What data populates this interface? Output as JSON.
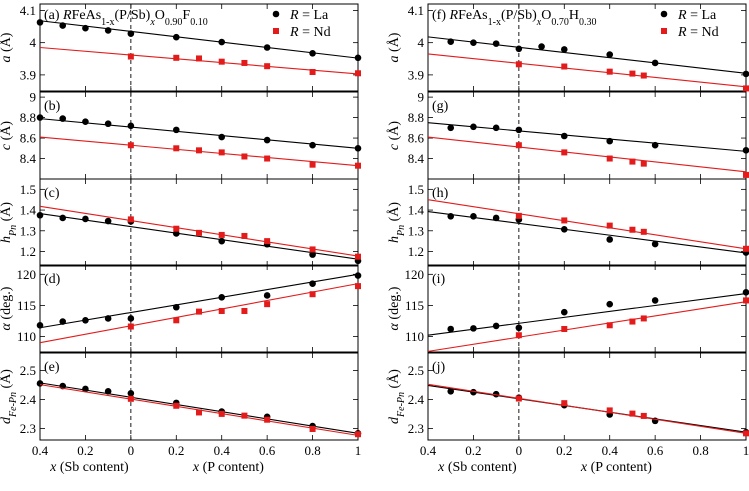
{
  "chart_data": {
    "type": "scatter",
    "x_tick_labels": [
      "0.4",
      "0.2",
      "0",
      "0.2",
      "0.4",
      "0.6",
      "0.8",
      "1"
    ],
    "x_label_sb": "x (Sb content)",
    "x_label_p": "x (P content)",
    "series_names": [
      "R = La",
      "R = Nd"
    ],
    "series_colors": [
      "#000000",
      "#e31b1b"
    ],
    "columns": [
      {
        "title": "(a) RFeAs1-x(P/Sb)xO0.90F0.10",
        "title_parts": {
          "pre": "(a) ",
          "r": "R",
          "mid": "FeAs",
          "sub1": "1-x",
          "mid2": "(P/Sb)",
          "subx": "x",
          "o": "O",
          "sub2": "0.90",
          "f": "F",
          "sub3": "0.10"
        },
        "panels": [
          {
            "label": "(a)",
            "quantity": "a",
            "unit": "(Å)",
            "ylim": [
              3.85,
              4.12
            ],
            "yticks": [
              3.9,
              4.0,
              4.1
            ],
            "series": [
              {
                "name": "R = La",
                "x": [
                  -0.4,
                  -0.3,
                  -0.2,
                  -0.1,
                  0,
                  0.2,
                  0.4,
                  0.6,
                  0.8,
                  1.0
                ],
                "y": [
                  4.063,
                  4.053,
                  4.045,
                  4.038,
                  4.028,
                  4.017,
                  4.002,
                  3.985,
                  3.967,
                  3.953
                ],
                "fit": [
                  4.068,
                  3.952
                ]
              },
              {
                "name": "R = Nd",
                "x": [
                  0,
                  0.2,
                  0.3,
                  0.4,
                  0.5,
                  0.6,
                  0.8,
                  1.0
                ],
                "y": [
                  3.957,
                  3.953,
                  3.951,
                  3.941,
                  3.937,
                  3.927,
                  3.909,
                  3.905
                ],
                "fit": [
                  3.985,
                  3.903
                ]
              }
            ]
          },
          {
            "label": "(b)",
            "quantity": "c",
            "unit": "(Å)",
            "ylim": [
              8.2,
              9.05
            ],
            "yticks": [
              8.4,
              8.6,
              8.8,
              9.0
            ],
            "series": [
              {
                "name": "R = La",
                "x": [
                  -0.4,
                  -0.3,
                  -0.2,
                  -0.1,
                  0,
                  0.2,
                  0.4,
                  0.6,
                  0.8,
                  1.0
                ],
                "y": [
                  8.8,
                  8.79,
                  8.76,
                  8.74,
                  8.72,
                  8.68,
                  8.61,
                  8.58,
                  8.53,
                  8.5
                ],
                "fit": [
                  8.79,
                  8.5
                ]
              },
              {
                "name": "R = Nd",
                "x": [
                  0,
                  0.2,
                  0.3,
                  0.4,
                  0.5,
                  0.6,
                  0.8,
                  1.0
                ],
                "y": [
                  8.53,
                  8.5,
                  8.48,
                  8.46,
                  8.42,
                  8.4,
                  8.34,
                  8.33
                ],
                "fit": [
                  8.61,
                  8.33
                ]
              }
            ]
          },
          {
            "label": "(c)",
            "quantity": "h",
            "quantity_sub": "Pn",
            "unit": "(Å)",
            "ylim": [
              1.13,
              1.55
            ],
            "yticks": [
              1.2,
              1.3,
              1.4,
              1.5
            ],
            "series": [
              {
                "name": "R = La",
                "x": [
                  -0.4,
                  -0.3,
                  -0.2,
                  -0.1,
                  0,
                  0.2,
                  0.4,
                  0.6,
                  0.8,
                  1.0
                ],
                "y": [
                  1.375,
                  1.362,
                  1.357,
                  1.347,
                  1.345,
                  1.287,
                  1.25,
                  1.235,
                  1.185,
                  1.155
                ],
                "fit": [
                  1.383,
                  1.163
                ]
              },
              {
                "name": "R = Nd",
                "x": [
                  0,
                  0.2,
                  0.3,
                  0.4,
                  0.5,
                  0.6,
                  0.8,
                  1.0
                ],
                "y": [
                  1.355,
                  1.31,
                  1.29,
                  1.28,
                  1.275,
                  1.25,
                  1.21,
                  1.175
                ],
                "fit": [
                  1.418,
                  1.178
                ]
              }
            ]
          },
          {
            "label": "(d)",
            "quantity": "α",
            "unit": "(deg.)",
            "ylim": [
              107.5,
              121.5
            ],
            "yticks": [
              110,
              115,
              120
            ],
            "series": [
              {
                "name": "R = La",
                "x": [
                  -0.4,
                  -0.3,
                  -0.2,
                  -0.1,
                  0,
                  0.2,
                  0.4,
                  0.6,
                  0.8,
                  1.0
                ],
                "y": [
                  111.8,
                  112.4,
                  112.6,
                  112.9,
                  112.9,
                  114.7,
                  116.3,
                  116.6,
                  118.5,
                  119.8
                ],
                "fit": [
                  111.4,
                  120.0
                ]
              },
              {
                "name": "R = Nd",
                "x": [
                  0,
                  0.2,
                  0.3,
                  0.4,
                  0.5,
                  0.6,
                  0.8,
                  1.0
                ],
                "y": [
                  111.6,
                  112.6,
                  114.0,
                  114.1,
                  114.1,
                  115.2,
                  116.8,
                  118.1
                ],
                "fit": [
                  109.0,
                  118.5
                ]
              }
            ]
          },
          {
            "label": "(e)",
            "quantity": "d",
            "quantity_sub": "Fe-Pn",
            "unit": "(Å)",
            "ylim": [
              2.26,
              2.56
            ],
            "yticks": [
              2.3,
              2.4,
              2.5
            ],
            "series": [
              {
                "name": "R = La",
                "x": [
                  -0.4,
                  -0.3,
                  -0.2,
                  -0.1,
                  0,
                  0.2,
                  0.4,
                  0.6,
                  0.8,
                  1.0
                ],
                "y": [
                  2.455,
                  2.446,
                  2.436,
                  2.428,
                  2.421,
                  2.388,
                  2.358,
                  2.34,
                  2.308,
                  2.283
                ],
                "fit": [
                  2.457,
                  2.283
                ]
              },
              {
                "name": "R = Nd",
                "x": [
                  0,
                  0.2,
                  0.3,
                  0.4,
                  0.5,
                  0.6,
                  0.8,
                  1.0
                ],
                "y": [
                  2.402,
                  2.378,
                  2.355,
                  2.35,
                  2.344,
                  2.33,
                  2.298,
                  2.28
                ],
                "fit": [
                  2.451,
                  2.276
                ]
              }
            ]
          }
        ]
      },
      {
        "title": "(f) RFeAs1-x(P/Sb)xO0.70H0.30",
        "title_parts": {
          "pre": "(f) ",
          "r": "R",
          "mid": "FeAs",
          "sub1": "1-x",
          "mid2": "(P/Sb)",
          "subx": "x",
          "o": "O",
          "sub2": "0.70",
          "f": "H",
          "sub3": "0.30"
        },
        "panels": [
          {
            "label": "(f)",
            "quantity": "a",
            "unit": "(Å)",
            "ylim": [
              3.85,
              4.12
            ],
            "yticks": [
              3.9,
              4.0,
              4.1
            ],
            "series": [
              {
                "name": "R = La",
                "x": [
                  -0.3,
                  -0.2,
                  -0.1,
                  0,
                  0.1,
                  0.2,
                  0.4,
                  0.6,
                  1.0
                ],
                "y": [
                  4.003,
                  4.0,
                  3.997,
                  3.981,
                  3.988,
                  3.979,
                  3.963,
                  3.937,
                  3.903
                ],
                "fit": [
                  4.018,
                  3.905
                ]
              },
              {
                "name": "R = Nd",
                "x": [
                  0,
                  0.2,
                  0.4,
                  0.5,
                  0.55,
                  1.0
                ],
                "y": [
                  3.933,
                  3.926,
                  3.91,
                  3.904,
                  3.898,
                  3.858
                ],
                "fit": [
                  3.965,
                  3.863
                ]
              }
            ]
          },
          {
            "label": "(g)",
            "quantity": "c",
            "unit": "(Å)",
            "ylim": [
              8.2,
              9.05
            ],
            "yticks": [
              8.4,
              8.6,
              8.8,
              9.0
            ],
            "series": [
              {
                "name": "R = La",
                "x": [
                  -0.3,
                  -0.2,
                  -0.1,
                  0,
                  0.2,
                  0.4,
                  0.6,
                  1.0
                ],
                "y": [
                  8.7,
                  8.71,
                  8.7,
                  8.68,
                  8.62,
                  8.57,
                  8.53,
                  8.48
                ],
                "fit": [
                  8.75,
                  8.47
                ]
              },
              {
                "name": "R = Nd",
                "x": [
                  0,
                  0.2,
                  0.4,
                  0.5,
                  0.55,
                  1.0
                ],
                "y": [
                  8.53,
                  8.46,
                  8.4,
                  8.37,
                  8.35,
                  8.24
                ],
                "fit": [
                  8.61,
                  8.27
                ]
              }
            ]
          },
          {
            "label": "(h)",
            "quantity": "h",
            "quantity_sub": "Pn",
            "unit": "(Å)",
            "ylim": [
              1.13,
              1.55
            ],
            "yticks": [
              1.2,
              1.3,
              1.4,
              1.5
            ],
            "series": [
              {
                "name": "R = La",
                "x": [
                  -0.3,
                  -0.2,
                  -0.1,
                  0,
                  0.2,
                  0.4,
                  0.6,
                  1.0
                ],
                "y": [
                  1.37,
                  1.37,
                  1.362,
                  1.354,
                  1.307,
                  1.258,
                  1.236,
                  1.195
                ],
                "fit": [
                  1.393,
                  1.193
                ]
              },
              {
                "name": "R = Nd",
                "x": [
                  0,
                  0.2,
                  0.4,
                  0.5,
                  0.55,
                  1.0
                ],
                "y": [
                  1.372,
                  1.35,
                  1.325,
                  1.305,
                  1.295,
                  1.213
                ],
                "fit": [
                  1.45,
                  1.213
                ]
              }
            ]
          },
          {
            "label": "(i)",
            "quantity": "α",
            "unit": "(deg.)",
            "ylim": [
              107.5,
              121.5
            ],
            "yticks": [
              110,
              115,
              120
            ],
            "series": [
              {
                "name": "R = La",
                "x": [
                  -0.3,
                  -0.2,
                  -0.1,
                  0,
                  0.2,
                  0.4,
                  0.6,
                  1.0
                ],
                "y": [
                  111.2,
                  111.3,
                  111.7,
                  111.4,
                  113.9,
                  115.2,
                  115.8,
                  117.1
                ],
                "fit": [
                  110.2,
                  116.9
                ]
              },
              {
                "name": "R = Nd",
                "x": [
                  0,
                  0.2,
                  0.4,
                  0.5,
                  0.55,
                  1.0
                ],
                "y": [
                  110.2,
                  111.2,
                  111.8,
                  112.4,
                  112.9,
                  115.8
                ],
                "fit": [
                  107.6,
                  115.6
                ]
              }
            ]
          },
          {
            "label": "(j)",
            "quantity": "d",
            "quantity_sub": "Fe-Pn",
            "unit": "(Å)",
            "ylim": [
              2.26,
              2.56
            ],
            "yticks": [
              2.3,
              2.4,
              2.5
            ],
            "series": [
              {
                "name": "R = La",
                "x": [
                  -0.3,
                  -0.2,
                  -0.1,
                  0,
                  0.2,
                  0.4,
                  0.6,
                  1.0
                ],
                "y": [
                  2.428,
                  2.425,
                  2.418,
                  2.406,
                  2.38,
                  2.348,
                  2.326,
                  2.287
                ],
                "fit": [
                  2.448,
                  2.287
                ]
              },
              {
                "name": "R = Nd",
                "x": [
                  0,
                  0.2,
                  0.4,
                  0.5,
                  0.55,
                  1.0
                ],
                "y": [
                  2.403,
                  2.387,
                  2.362,
                  2.351,
                  2.343,
                  2.283
                ],
                "fit": [
                  2.452,
                  2.283
                ]
              }
            ]
          }
        ]
      }
    ]
  }
}
